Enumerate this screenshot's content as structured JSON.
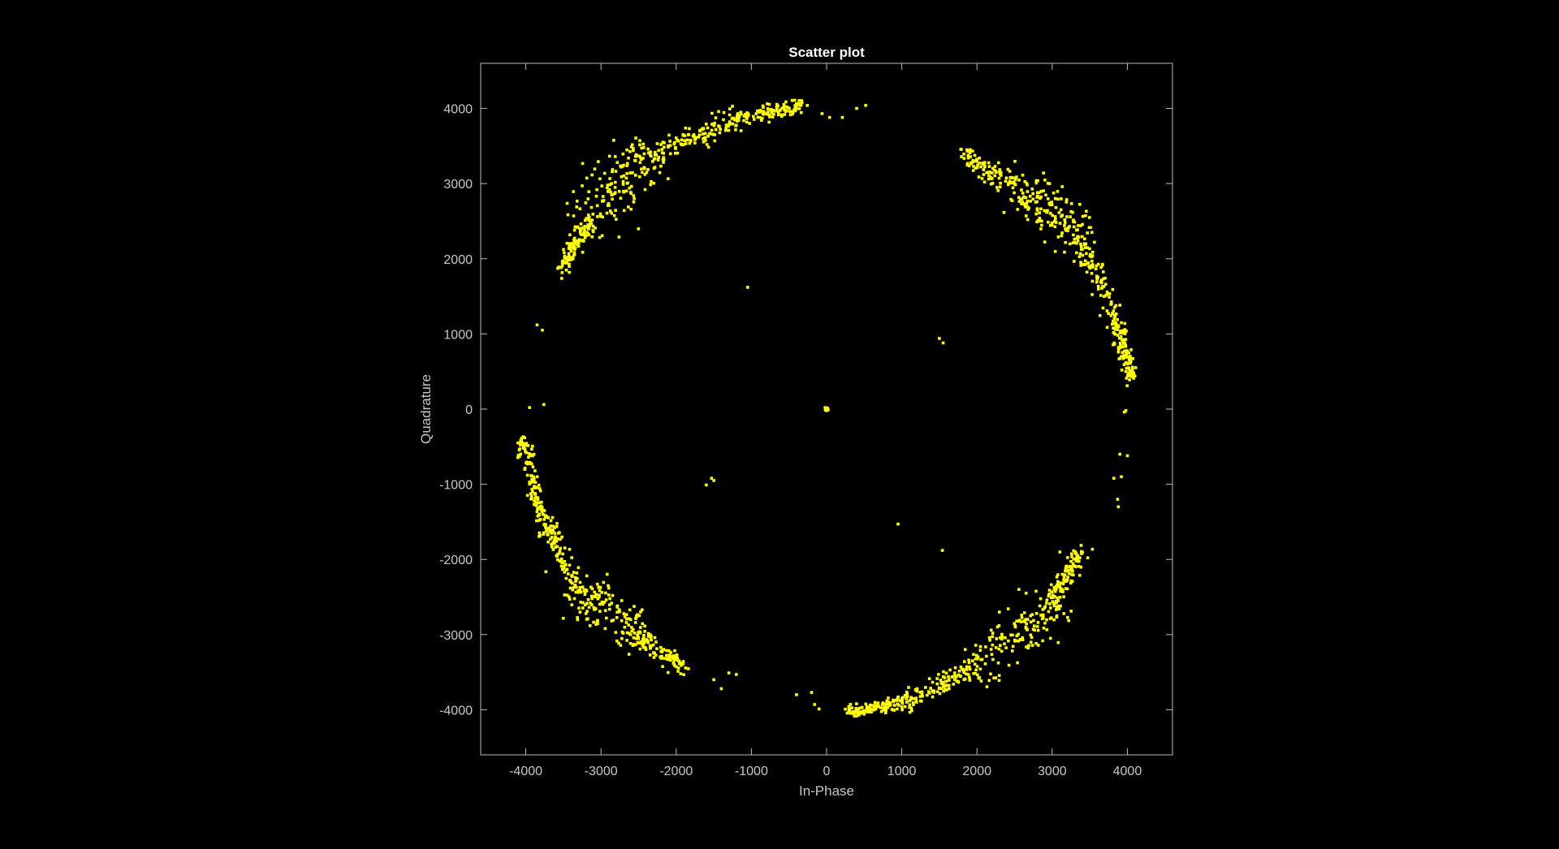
{
  "colors": {
    "background": "#000000",
    "axes_frame": "#bdbdbd",
    "tick_text": "#c8c8c8",
    "title_text": "#ffffff",
    "points": "#ffff00"
  },
  "chart_data": {
    "type": "scatter",
    "title": "Scatter plot",
    "xlabel": "In-Phase",
    "ylabel": "Quadrature",
    "xlim": [
      -4600,
      4600
    ],
    "ylim": [
      -4600,
      4600
    ],
    "xticks": [
      -4000,
      -3000,
      -2000,
      -1000,
      0,
      1000,
      2000,
      3000,
      4000
    ],
    "yticks": [
      -4000,
      -3000,
      -2000,
      -1000,
      0,
      1000,
      2000,
      3000,
      4000
    ],
    "grid": false,
    "legend": "none",
    "series": [
      {
        "clusters": [
          {
            "from": [
              -3550,
              1850
            ],
            "to": [
              -3150,
              2500
            ],
            "count": 110,
            "spread": 60
          },
          {
            "from": [
              -3150,
              2550
            ],
            "to": [
              -2400,
              3350
            ],
            "count": 150,
            "spread": 170
          },
          {
            "from": [
              -2400,
              3350
            ],
            "to": [
              -1200,
              3850
            ],
            "count": 130,
            "spread": 80
          },
          {
            "from": [
              -1200,
              3850
            ],
            "to": [
              -350,
              4050
            ],
            "count": 110,
            "spread": 55
          },
          {
            "from": [
              1800,
              3400
            ],
            "to": [
              2500,
              3000
            ],
            "count": 90,
            "spread": 70
          },
          {
            "from": [
              2500,
              2950
            ],
            "to": [
              3300,
              2400
            ],
            "count": 150,
            "spread": 160
          },
          {
            "from": [
              3300,
              2300
            ],
            "to": [
              3850,
              1250
            ],
            "count": 100,
            "spread": 70
          },
          {
            "from": [
              3850,
              1200
            ],
            "to": [
              4050,
              400
            ],
            "count": 120,
            "spread": 45
          },
          {
            "from": [
              -4050,
              -400
            ],
            "to": [
              -3800,
              -1400
            ],
            "count": 110,
            "spread": 45
          },
          {
            "from": [
              -3800,
              -1400
            ],
            "to": [
              -3350,
              -2300
            ],
            "count": 100,
            "spread": 60
          },
          {
            "from": [
              -3350,
              -2400
            ],
            "to": [
              -2600,
              -2900
            ],
            "count": 140,
            "spread": 150
          },
          {
            "from": [
              -2600,
              -2950
            ],
            "to": [
              -1900,
              -3450
            ],
            "count": 120,
            "spread": 60
          },
          {
            "from": [
              3400,
              -1850
            ],
            "to": [
              3000,
              -2600
            ],
            "count": 110,
            "spread": 60
          },
          {
            "from": [
              3000,
              -2600
            ],
            "to": [
              2000,
              -3450
            ],
            "count": 150,
            "spread": 160
          },
          {
            "from": [
              2000,
              -3450
            ],
            "to": [
              1000,
              -3900
            ],
            "count": 120,
            "spread": 70
          },
          {
            "from": [
              1000,
              -3900
            ],
            "to": [
              250,
              -4050
            ],
            "count": 110,
            "spread": 45
          }
        ],
        "points": [
          [
            0,
            0
          ],
          [
            -20,
            20
          ],
          [
            20,
            -10
          ],
          [
            10,
            15
          ],
          [
            -15,
            -15
          ],
          [
            5,
            5
          ],
          [
            0,
            -20
          ],
          [
            -10,
            10
          ],
          [
            15,
            0
          ],
          [
            0,
            10
          ],
          [
            -1050,
            1620
          ],
          [
            -3850,
            1120
          ],
          [
            -3780,
            1050
          ],
          [
            -3950,
            20
          ],
          [
            -3760,
            60
          ],
          [
            1500,
            940
          ],
          [
            1550,
            880
          ],
          [
            -1600,
            -1010
          ],
          [
            -1500,
            -950
          ],
          [
            -1530,
            -920
          ],
          [
            950,
            -1530
          ],
          [
            1540,
            -1880
          ],
          [
            3900,
            -600
          ],
          [
            4000,
            -620
          ],
          [
            3820,
            -920
          ],
          [
            3920,
            -900
          ],
          [
            3870,
            -1200
          ],
          [
            3880,
            -1300
          ],
          [
            3960,
            -40
          ],
          [
            3980,
            -20
          ],
          [
            -1500,
            -3600
          ],
          [
            -1400,
            -3720
          ],
          [
            -1300,
            -3510
          ],
          [
            -1200,
            -3530
          ],
          [
            -400,
            -3800
          ],
          [
            -200,
            -3770
          ],
          [
            -160,
            -3930
          ],
          [
            -100,
            -3990
          ],
          [
            -60,
            3930
          ],
          [
            40,
            3880
          ],
          [
            210,
            3880
          ],
          [
            400,
            4000
          ],
          [
            520,
            4040
          ]
        ]
      }
    ]
  }
}
